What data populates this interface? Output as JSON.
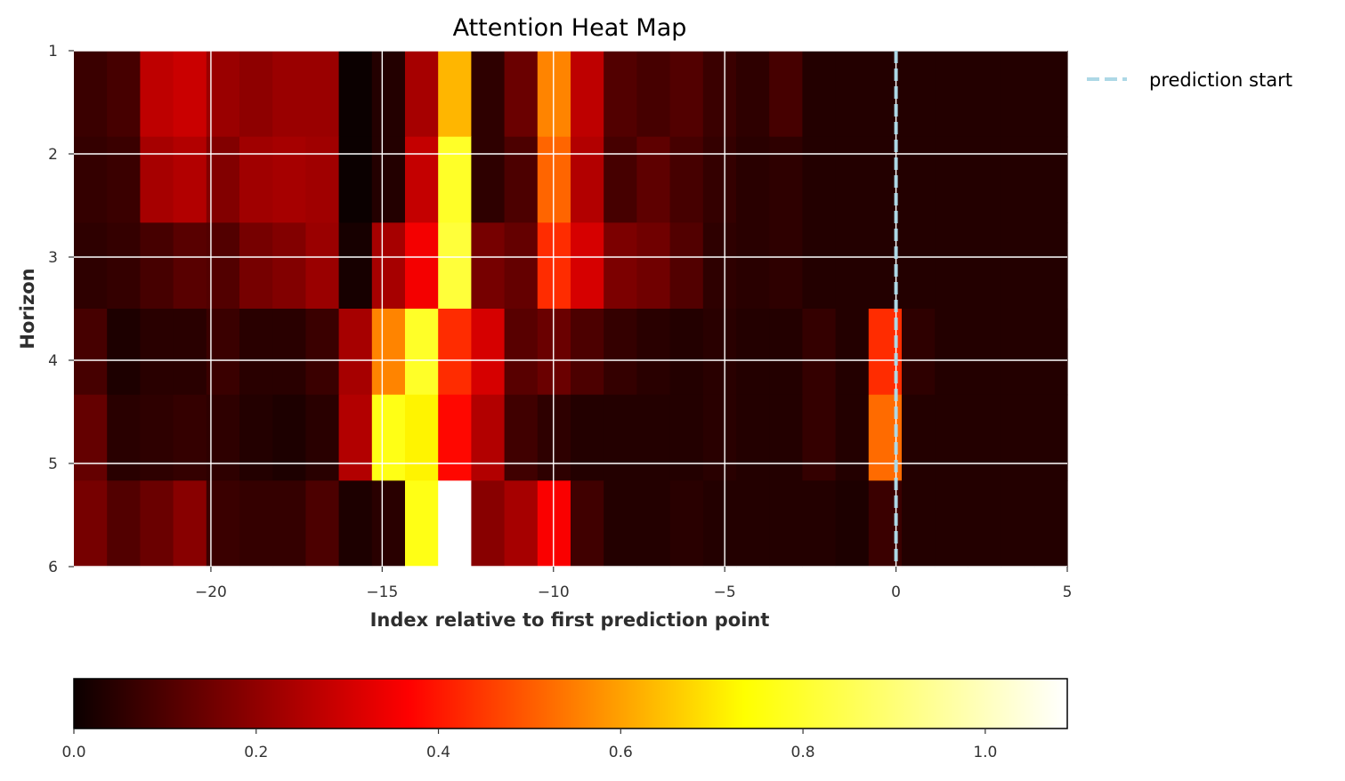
{
  "chart_data": {
    "type": "heatmap",
    "title": "Attention Heat Map",
    "xlabel": "Index relative to first prediction point",
    "ylabel": "Horizon",
    "x_start": -24,
    "x_end": 5,
    "xlim": [
      -24,
      5
    ],
    "ylim": [
      1,
      6
    ],
    "x_ticks": [
      -20,
      -15,
      -10,
      -5,
      0,
      5
    ],
    "x_tick_labels": [
      "−20",
      "−15",
      "−10",
      "−5",
      "0",
      "5"
    ],
    "y_ticks": [
      1,
      2,
      3,
      4,
      5,
      6
    ],
    "y_tick_labels": [
      "1",
      "2",
      "3",
      "4",
      "5",
      "6"
    ],
    "grid": true,
    "colormap": "hot",
    "colorbar": {
      "min": 0.0,
      "max": 1.09,
      "ticks": [
        0.0,
        0.2,
        0.4,
        0.6,
        0.8,
        1.0
      ],
      "tick_labels": [
        "0.0",
        "0.2",
        "0.4",
        "0.6",
        "0.8",
        "1.0"
      ],
      "orientation": "horizontal"
    },
    "vline": {
      "x": 0,
      "label": "prediction start",
      "color": "#add8e6",
      "style": "dashed"
    },
    "legend": {
      "placement": "outside-top-right",
      "entries": [
        "prediction start"
      ]
    },
    "rows": [
      [
        0.08,
        0.1,
        0.3,
        0.32,
        0.24,
        0.22,
        0.24,
        0.24,
        0.0,
        0.04,
        0.26,
        0.7,
        0.06,
        0.16,
        0.62,
        0.3,
        0.12,
        0.1,
        0.12,
        0.08,
        0.06,
        0.1,
        0.04,
        0.04,
        0.04,
        0.04,
        0.04,
        0.04,
        0.04,
        0.04
      ],
      [
        0.07,
        0.08,
        0.26,
        0.28,
        0.2,
        0.25,
        0.26,
        0.25,
        0.0,
        0.04,
        0.31,
        0.86,
        0.06,
        0.11,
        0.57,
        0.28,
        0.1,
        0.14,
        0.1,
        0.07,
        0.05,
        0.06,
        0.04,
        0.04,
        0.04,
        0.04,
        0.04,
        0.04,
        0.04,
        0.04
      ],
      [
        0.06,
        0.07,
        0.1,
        0.13,
        0.12,
        0.18,
        0.2,
        0.24,
        0.02,
        0.26,
        0.39,
        0.88,
        0.18,
        0.15,
        0.48,
        0.34,
        0.19,
        0.17,
        0.12,
        0.06,
        0.05,
        0.06,
        0.04,
        0.04,
        0.04,
        0.04,
        0.04,
        0.04,
        0.04,
        0.04
      ],
      [
        0.1,
        0.03,
        0.05,
        0.05,
        0.08,
        0.05,
        0.05,
        0.08,
        0.26,
        0.62,
        0.86,
        0.48,
        0.34,
        0.13,
        0.16,
        0.11,
        0.07,
        0.05,
        0.04,
        0.05,
        0.04,
        0.04,
        0.07,
        0.04,
        0.48,
        0.06,
        0.04,
        0.04,
        0.04,
        0.04
      ],
      [
        0.15,
        0.05,
        0.06,
        0.07,
        0.06,
        0.04,
        0.03,
        0.05,
        0.28,
        0.84,
        0.8,
        0.42,
        0.28,
        0.09,
        0.06,
        0.04,
        0.04,
        0.04,
        0.04,
        0.05,
        0.04,
        0.04,
        0.07,
        0.04,
        0.58,
        0.04,
        0.04,
        0.04,
        0.04,
        0.04
      ],
      [
        0.18,
        0.12,
        0.16,
        0.21,
        0.08,
        0.07,
        0.07,
        0.11,
        0.03,
        0.05,
        0.84,
        1.09,
        0.21,
        0.26,
        0.4,
        0.09,
        0.04,
        0.04,
        0.05,
        0.04,
        0.04,
        0.04,
        0.04,
        0.03,
        0.08,
        0.04,
        0.04,
        0.04,
        0.04,
        0.04
      ]
    ]
  }
}
